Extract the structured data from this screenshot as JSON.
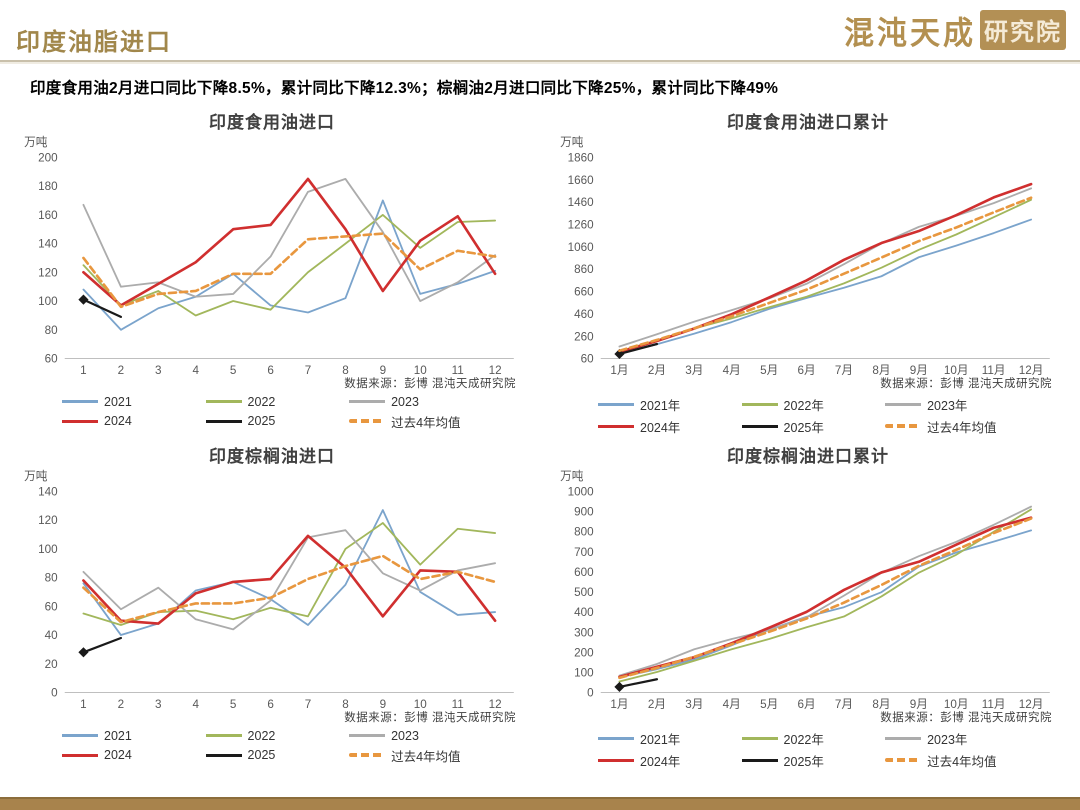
{
  "header": {
    "title": "印度油脂进口",
    "logo_text": "混沌天成",
    "logo_badge": "研究院"
  },
  "subtitle": "印度食用油2月进口同比下降8.5%，累计同比下降12.3%；棕榈油2月进口同比下降25%，累计同比下降49%",
  "source_note": "数据来源：彭博  混沌天成研究院",
  "colors": {
    "blue_2021": "#7ba4cc",
    "green_2022": "#a2b75c",
    "gray_2023": "#acacac",
    "red_2024": "#d02f2f",
    "black_2025": "#1a1a1a",
    "orange_mean": "#e8973f",
    "title_gold": "#a1874b",
    "footer_gold": "#a8834c",
    "axis_text": "#595959"
  },
  "chart_data": [
    {
      "type": "line",
      "title": "印度食用油进口",
      "unit": "万吨",
      "ylim": [
        60,
        200
      ],
      "ystep": 20,
      "categories": [
        "1",
        "2",
        "3",
        "4",
        "5",
        "6",
        "7",
        "8",
        "9",
        "10",
        "11",
        "12"
      ],
      "series": [
        {
          "name": "2021",
          "color": "#7ba4cc",
          "values": [
            108,
            80,
            95,
            103,
            119,
            97,
            92,
            102,
            170,
            105,
            112,
            121
          ]
        },
        {
          "name": "2022",
          "color": "#a2b75c",
          "values": [
            125,
            97,
            107,
            90,
            100,
            94,
            120,
            140,
            160,
            137,
            155,
            156
          ]
        },
        {
          "name": "2023",
          "color": "#acacac",
          "values": [
            167,
            110,
            113,
            103,
            105,
            131,
            176,
            185,
            148,
            100,
            113,
            132
          ]
        },
        {
          "name": "2024",
          "color": "#d02f2f",
          "width": 2.6,
          "values": [
            120,
            97,
            112,
            127,
            150,
            153,
            185,
            150,
            107,
            142,
            159,
            119
          ]
        },
        {
          "name": "2025",
          "color": "#1a1a1a",
          "width": 2.2,
          "marker": "diamond",
          "values": [
            101,
            89
          ]
        },
        {
          "name": "过去4年均值",
          "color": "#e8973f",
          "width": 2.6,
          "dash": true,
          "values": [
            130,
            96,
            105,
            107,
            119,
            119,
            143,
            145,
            147,
            122,
            135,
            131
          ]
        }
      ]
    },
    {
      "type": "line",
      "title": "印度食用油进口累计",
      "unit": "万吨",
      "ylim": [
        60,
        1860
      ],
      "ystep": 200,
      "categories": [
        "1月",
        "2月",
        "3月",
        "4月",
        "5月",
        "6月",
        "7月",
        "8月",
        "9月",
        "10月",
        "11月",
        "12月"
      ],
      "series": [
        {
          "name": "2021年",
          "color": "#7ba4cc",
          "values": [
            108,
            188,
            283,
            386,
            505,
            602,
            694,
            796,
            966,
            1071,
            1183,
            1304
          ]
        },
        {
          "name": "2022年",
          "color": "#a2b75c",
          "values": [
            125,
            222,
            329,
            419,
            519,
            613,
            733,
            873,
            1033,
            1170,
            1325,
            1481
          ]
        },
        {
          "name": "2023年",
          "color": "#acacac",
          "values": [
            167,
            277,
            390,
            493,
            598,
            729,
            905,
            1090,
            1238,
            1338,
            1451,
            1583
          ]
        },
        {
          "name": "2024年",
          "color": "#d02f2f",
          "width": 2.6,
          "values": [
            120,
            217,
            329,
            456,
            606,
            759,
            944,
            1094,
            1201,
            1343,
            1502,
            1621
          ]
        },
        {
          "name": "2025年",
          "color": "#1a1a1a",
          "width": 2.2,
          "marker": "diamond",
          "values": [
            101,
            190
          ]
        },
        {
          "name": "过去4年均值",
          "color": "#e8973f",
          "width": 2.6,
          "dash": true,
          "values": [
            130,
            226,
            331,
            438,
            557,
            676,
            819,
            964,
            1111,
            1233,
            1368,
            1499
          ]
        }
      ]
    },
    {
      "type": "line",
      "title": "印度棕榈油进口",
      "unit": "万吨",
      "ylim": [
        0,
        140
      ],
      "ystep": 20,
      "categories": [
        "1",
        "2",
        "3",
        "4",
        "5",
        "6",
        "7",
        "8",
        "9",
        "10",
        "11",
        "12"
      ],
      "series": [
        {
          "name": "2021",
          "color": "#7ba4cc",
          "values": [
            76,
            40,
            48,
            71,
            77,
            65,
            47,
            75,
            127,
            70,
            54,
            56
          ]
        },
        {
          "name": "2022",
          "color": "#a2b75c",
          "values": [
            55,
            47,
            56,
            57,
            51,
            59,
            53,
            100,
            118,
            89,
            114,
            111
          ]
        },
        {
          "name": "2023",
          "color": "#acacac",
          "values": [
            84,
            58,
            73,
            51,
            44,
            64,
            108,
            113,
            83,
            71,
            85,
            90
          ]
        },
        {
          "name": "2024",
          "color": "#d02f2f",
          "width": 2.6,
          "values": [
            78,
            50,
            48,
            69,
            77,
            79,
            109,
            87,
            53,
            85,
            84,
            50
          ]
        },
        {
          "name": "2025",
          "color": "#1a1a1a",
          "width": 2.2,
          "marker": "diamond",
          "values": [
            28,
            38
          ]
        },
        {
          "name": "过去4年均值",
          "color": "#e8973f",
          "width": 2.6,
          "dash": true,
          "values": [
            73,
            49,
            56,
            62,
            62,
            66,
            79,
            88,
            95,
            79,
            84,
            77
          ]
        }
      ]
    },
    {
      "type": "line",
      "title": "印度棕榈油进口累计",
      "unit": "万吨",
      "ylim": [
        0,
        1000
      ],
      "ystep": 100,
      "categories": [
        "1月",
        "2月",
        "3月",
        "4月",
        "5月",
        "6月",
        "7月",
        "8月",
        "9月",
        "10月",
        "11月",
        "12月"
      ],
      "series": [
        {
          "name": "2021年",
          "color": "#7ba4cc",
          "values": [
            76,
            116,
            164,
            235,
            312,
            377,
            424,
            499,
            626,
            696,
            750,
            806
          ]
        },
        {
          "name": "2022年",
          "color": "#a2b75c",
          "values": [
            55,
            102,
            158,
            215,
            266,
            325,
            378,
            478,
            596,
            685,
            799,
            910
          ]
        },
        {
          "name": "2023年",
          "color": "#acacac",
          "values": [
            84,
            142,
            215,
            266,
            310,
            374,
            482,
            595,
            678,
            749,
            834,
            924
          ]
        },
        {
          "name": "2024年",
          "color": "#d02f2f",
          "width": 2.6,
          "values": [
            78,
            128,
            176,
            245,
            322,
            401,
            510,
            597,
            650,
            735,
            819,
            869
          ]
        },
        {
          "name": "2025年",
          "color": "#1a1a1a",
          "width": 2.2,
          "marker": "diamond",
          "values": [
            28,
            66
          ]
        },
        {
          "name": "过去4年均值",
          "color": "#e8973f",
          "width": 2.6,
          "dash": true,
          "values": [
            73,
            122,
            178,
            240,
            302,
            368,
            447,
            535,
            630,
            709,
            793,
            865
          ]
        }
      ]
    }
  ]
}
